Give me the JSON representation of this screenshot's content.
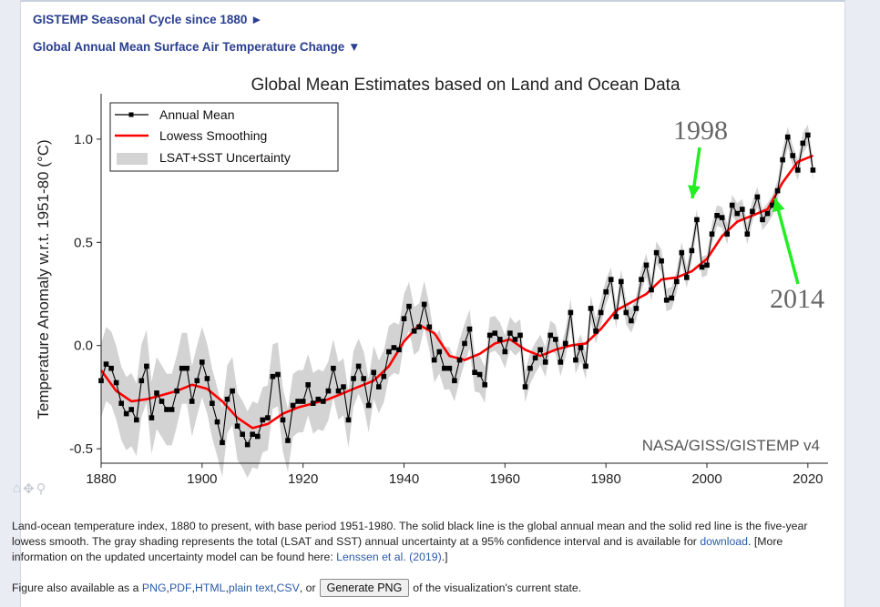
{
  "header": {
    "seasonal_link": "GISTEMP Seasonal Cycle since 1880 ►",
    "annual_link": "Global Annual Mean Surface Air Temperature Change ▼"
  },
  "colors": {
    "mean": "#000000",
    "lowess": "#ff0000",
    "uncertainty": "#d3d3d3",
    "arrow": "#22ee22",
    "link": "#2a3f8f"
  },
  "toolbar_icons": [
    "home-icon",
    "pan-icon",
    "zoom-icon"
  ],
  "chart_data": {
    "type": "line",
    "title": "Global Mean Estimates based on Land and Ocean Data",
    "xlabel": "",
    "ylabel": "Temperature Anomaly w.r.t. 1951-80 (°C)",
    "xlim": [
      1880,
      2024
    ],
    "ylim": [
      -0.57,
      1.22
    ],
    "x_ticks": [
      1880,
      1900,
      1920,
      1940,
      1960,
      1980,
      2000,
      2020
    ],
    "y_ticks": [
      -0.5,
      0.0,
      0.5,
      1.0
    ],
    "y_tick_labels": [
      "-0.5",
      "0.0",
      "0.5",
      "1.0"
    ],
    "grid": false,
    "legend_position": "top-left",
    "watermark": "NASA/GISS/GISTEMP v4",
    "annotations": [
      {
        "text": "1998",
        "year": 1998
      },
      {
        "text": "2014",
        "year": 2014
      }
    ],
    "series": [
      {
        "name": "Annual Mean",
        "x": [
          1880,
          1881,
          1882,
          1883,
          1884,
          1885,
          1886,
          1887,
          1888,
          1889,
          1890,
          1891,
          1892,
          1893,
          1894,
          1895,
          1896,
          1897,
          1898,
          1899,
          1900,
          1901,
          1902,
          1903,
          1904,
          1905,
          1906,
          1907,
          1908,
          1909,
          1910,
          1911,
          1912,
          1913,
          1914,
          1915,
          1916,
          1917,
          1918,
          1919,
          1920,
          1921,
          1922,
          1923,
          1924,
          1925,
          1926,
          1927,
          1928,
          1929,
          1930,
          1931,
          1932,
          1933,
          1934,
          1935,
          1936,
          1937,
          1938,
          1939,
          1940,
          1941,
          1942,
          1943,
          1944,
          1945,
          1946,
          1947,
          1948,
          1949,
          1950,
          1951,
          1952,
          1953,
          1954,
          1955,
          1956,
          1957,
          1958,
          1959,
          1960,
          1961,
          1962,
          1963,
          1964,
          1965,
          1966,
          1967,
          1968,
          1969,
          1970,
          1971,
          1972,
          1973,
          1974,
          1975,
          1976,
          1977,
          1978,
          1979,
          1980,
          1981,
          1982,
          1983,
          1984,
          1985,
          1986,
          1987,
          1988,
          1989,
          1990,
          1991,
          1992,
          1993,
          1994,
          1995,
          1996,
          1997,
          1998,
          1999,
          2000,
          2001,
          2002,
          2003,
          2004,
          2005,
          2006,
          2007,
          2008,
          2009,
          2010,
          2011,
          2012,
          2013,
          2014,
          2015,
          2016,
          2017,
          2018,
          2019,
          2020,
          2021
        ],
        "y": [
          -0.17,
          -0.09,
          -0.11,
          -0.18,
          -0.28,
          -0.33,
          -0.31,
          -0.36,
          -0.17,
          -0.1,
          -0.35,
          -0.23,
          -0.27,
          -0.31,
          -0.31,
          -0.22,
          -0.11,
          -0.11,
          -0.27,
          -0.17,
          -0.08,
          -0.16,
          -0.28,
          -0.37,
          -0.47,
          -0.26,
          -0.22,
          -0.39,
          -0.43,
          -0.48,
          -0.43,
          -0.44,
          -0.36,
          -0.35,
          -0.15,
          -0.14,
          -0.36,
          -0.46,
          -0.29,
          -0.27,
          -0.27,
          -0.19,
          -0.28,
          -0.26,
          -0.27,
          -0.22,
          -0.11,
          -0.22,
          -0.2,
          -0.36,
          -0.16,
          -0.1,
          -0.16,
          -0.29,
          -0.13,
          -0.2,
          -0.15,
          -0.03,
          -0.01,
          -0.02,
          0.13,
          0.19,
          0.07,
          0.09,
          0.2,
          0.09,
          -0.07,
          -0.03,
          -0.11,
          -0.11,
          -0.17,
          -0.07,
          0.01,
          0.08,
          -0.13,
          -0.14,
          -0.19,
          0.05,
          0.06,
          0.03,
          -0.03,
          0.06,
          0.03,
          0.05,
          -0.2,
          -0.11,
          -0.06,
          -0.02,
          -0.08,
          0.05,
          0.03,
          -0.08,
          0.01,
          0.16,
          -0.07,
          -0.01,
          -0.1,
          0.18,
          0.07,
          0.16,
          0.26,
          0.32,
          0.14,
          0.31,
          0.16,
          0.12,
          0.18,
          0.32,
          0.39,
          0.27,
          0.45,
          0.41,
          0.22,
          0.23,
          0.31,
          0.45,
          0.33,
          0.46,
          0.61,
          0.38,
          0.39,
          0.54,
          0.63,
          0.62,
          0.54,
          0.68,
          0.64,
          0.66,
          0.54,
          0.65,
          0.72,
          0.61,
          0.64,
          0.68,
          0.75,
          0.9,
          1.01,
          0.92,
          0.85,
          0.98,
          1.02,
          0.85
        ]
      },
      {
        "name": "Lowess Smoothing",
        "x": [
          1880,
          1883,
          1886,
          1889,
          1892,
          1895,
          1898,
          1901,
          1904,
          1907,
          1910,
          1913,
          1916,
          1919,
          1922,
          1925,
          1928,
          1931,
          1934,
          1937,
          1940,
          1943,
          1946,
          1949,
          1952,
          1955,
          1958,
          1961,
          1964,
          1967,
          1970,
          1973,
          1976,
          1979,
          1982,
          1985,
          1988,
          1991,
          1994,
          1997,
          2000,
          2003,
          2006,
          2009,
          2012,
          2015,
          2018,
          2021
        ],
        "y": [
          -0.12,
          -0.22,
          -0.27,
          -0.26,
          -0.24,
          -0.22,
          -0.19,
          -0.21,
          -0.27,
          -0.35,
          -0.4,
          -0.38,
          -0.33,
          -0.3,
          -0.28,
          -0.26,
          -0.23,
          -0.2,
          -0.17,
          -0.1,
          0.02,
          0.1,
          0.06,
          -0.05,
          -0.07,
          -0.04,
          0.01,
          0.03,
          -0.02,
          -0.05,
          -0.02,
          0.0,
          0.01,
          0.08,
          0.17,
          0.21,
          0.25,
          0.32,
          0.33,
          0.36,
          0.42,
          0.53,
          0.6,
          0.63,
          0.66,
          0.79,
          0.89,
          0.92
        ]
      },
      {
        "name": "LSAT+SST Uncertainty",
        "type": "band",
        "half_width": [
          {
            "year": 1880,
            "value": 0.18
          },
          {
            "year": 1900,
            "value": 0.17
          },
          {
            "year": 1920,
            "value": 0.15
          },
          {
            "year": 1940,
            "value": 0.12
          },
          {
            "year": 1950,
            "value": 0.1
          },
          {
            "year": 1960,
            "value": 0.08
          },
          {
            "year": 1980,
            "value": 0.06
          },
          {
            "year": 2000,
            "value": 0.05
          },
          {
            "year": 2021,
            "value": 0.05
          }
        ]
      }
    ]
  },
  "description": {
    "text1": "Land-ocean temperature index, 1880 to present, with base period 1951-1980. The solid black line is the global annual mean and the solid red line is the five-year lowess smooth. The gray shading represents the total (LSAT and SST) annual uncertainty at a 95% confidence interval and is available for ",
    "download_link": "download",
    "text2": ". [More information on the updated uncertainty model can be found here: ",
    "lenssen_link": "Lenssen et al. (2019)",
    "text3": ".]"
  },
  "footer": {
    "prefix": "Figure also available as a ",
    "png": "PNG",
    "pdf": "PDF",
    "html": "HTML",
    "plain": "plain text",
    "csv": "CSV",
    "or": "or",
    "button": "Generate PNG",
    "suffix": "of the visualization's current state.",
    "sep": ", "
  }
}
